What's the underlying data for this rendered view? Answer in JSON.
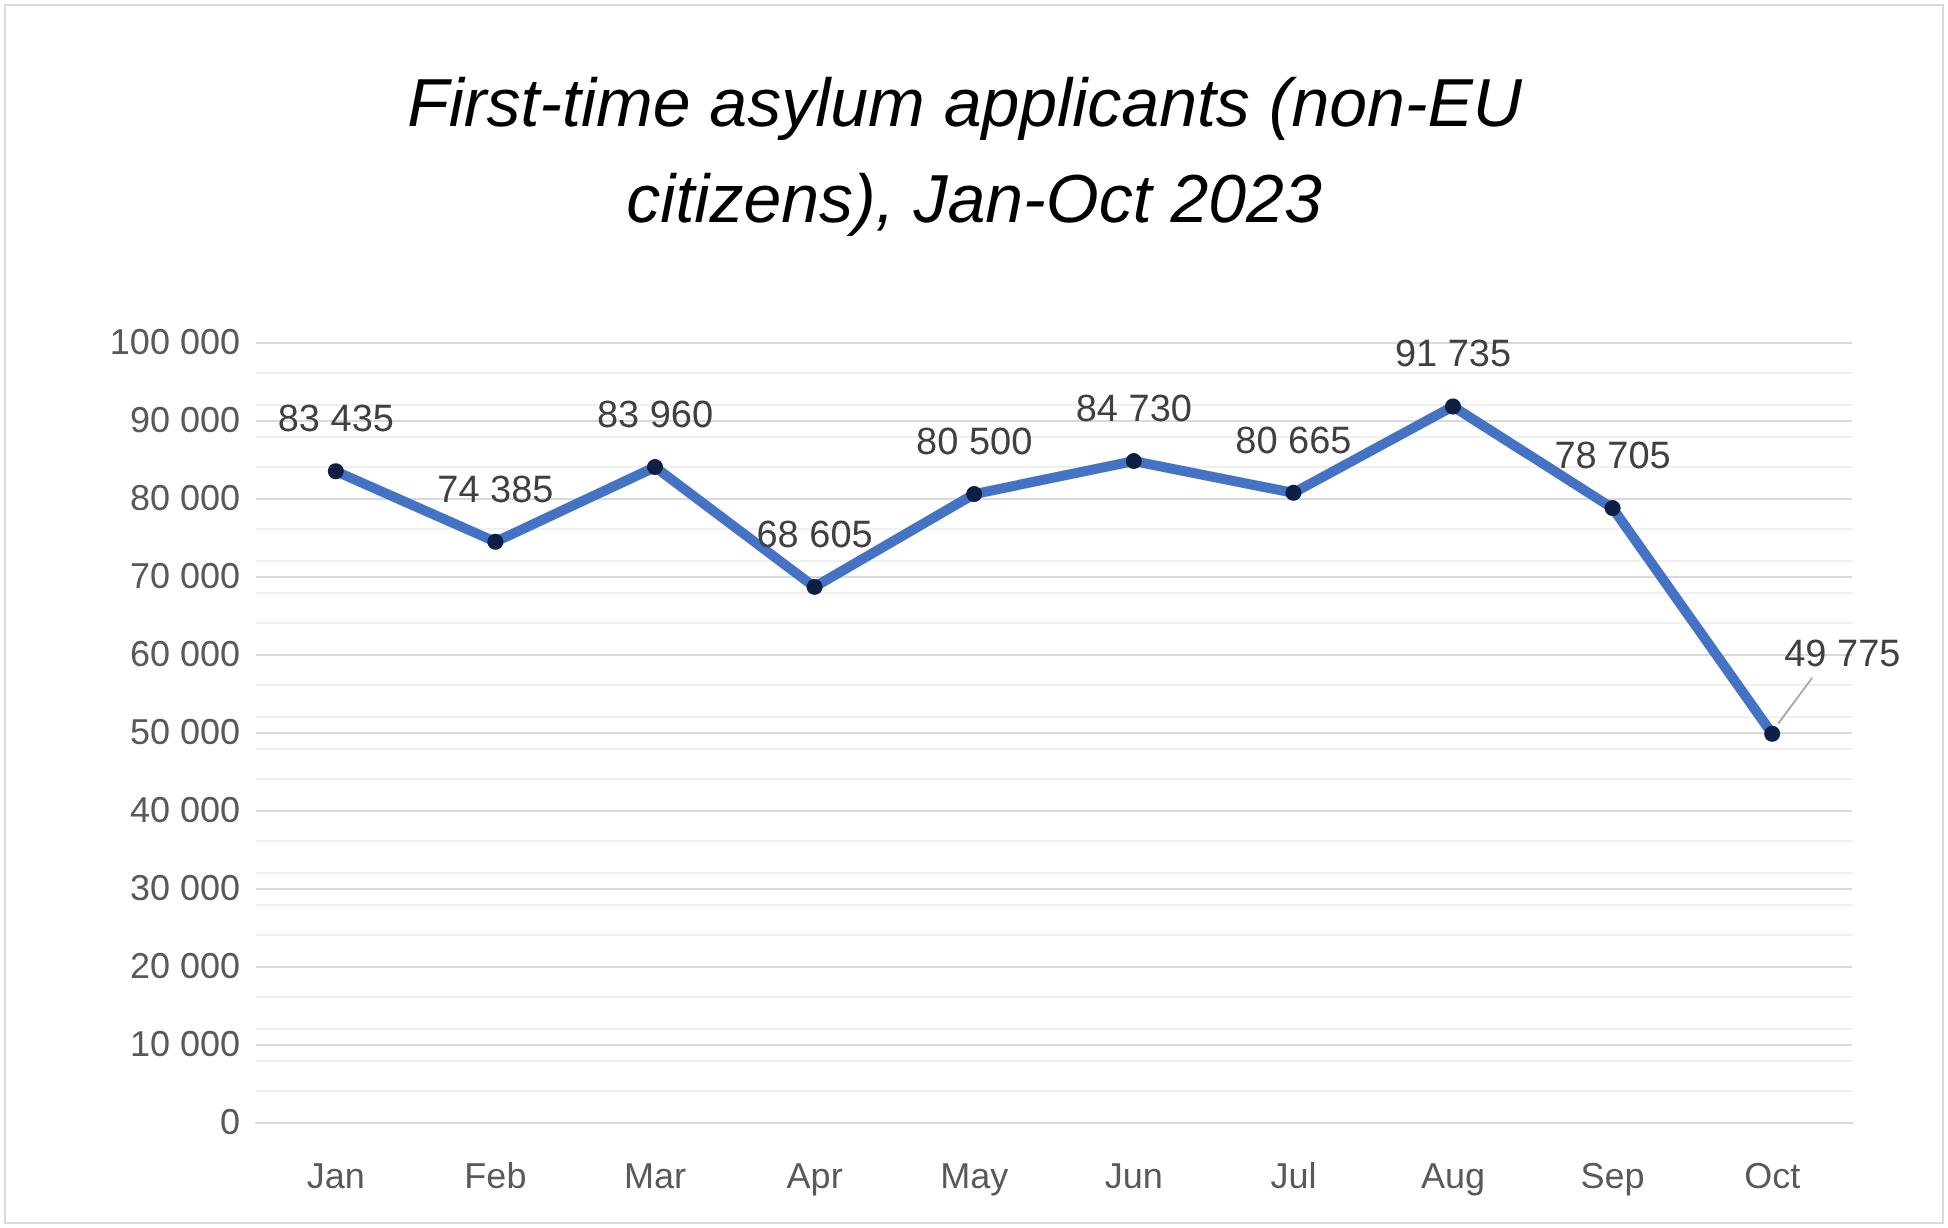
{
  "chart_data": {
    "type": "line",
    "title": "First-time asylum applicants (non-EU citizens), Jan-Oct 2023",
    "categories": [
      "Jan",
      "Feb",
      "Mar",
      "Apr",
      "May",
      "Jun",
      "Jul",
      "Aug",
      "Sep",
      "Oct"
    ],
    "series": [
      {
        "color": "#4472c4",
        "values": [
          83435,
          74385,
          83960,
          68605,
          80500,
          84730,
          80665,
          91735,
          78705,
          49775
        ],
        "value_labels": [
          "83 435",
          "74 385",
          "83 960",
          "68 605",
          "80 500",
          "84 730",
          "80 665",
          "91 735",
          "78 705",
          "49 775"
        ]
      }
    ],
    "ylim": [
      0,
      100000
    ],
    "yticks": [
      {
        "value": 0,
        "label": "0"
      },
      {
        "value": 10000,
        "label": "10 000"
      },
      {
        "value": 20000,
        "label": "20 000"
      },
      {
        "value": 30000,
        "label": "30 000"
      },
      {
        "value": 40000,
        "label": "40 000"
      },
      {
        "value": 50000,
        "label": "50 000"
      },
      {
        "value": 60000,
        "label": "60 000"
      },
      {
        "value": 70000,
        "label": "70 000"
      },
      {
        "value": 80000,
        "label": "80 000"
      },
      {
        "value": 90000,
        "label": "90 000"
      },
      {
        "value": 100000,
        "label": "100 000"
      }
    ],
    "grid": "y",
    "marker": "circle",
    "line_style": "solid"
  }
}
